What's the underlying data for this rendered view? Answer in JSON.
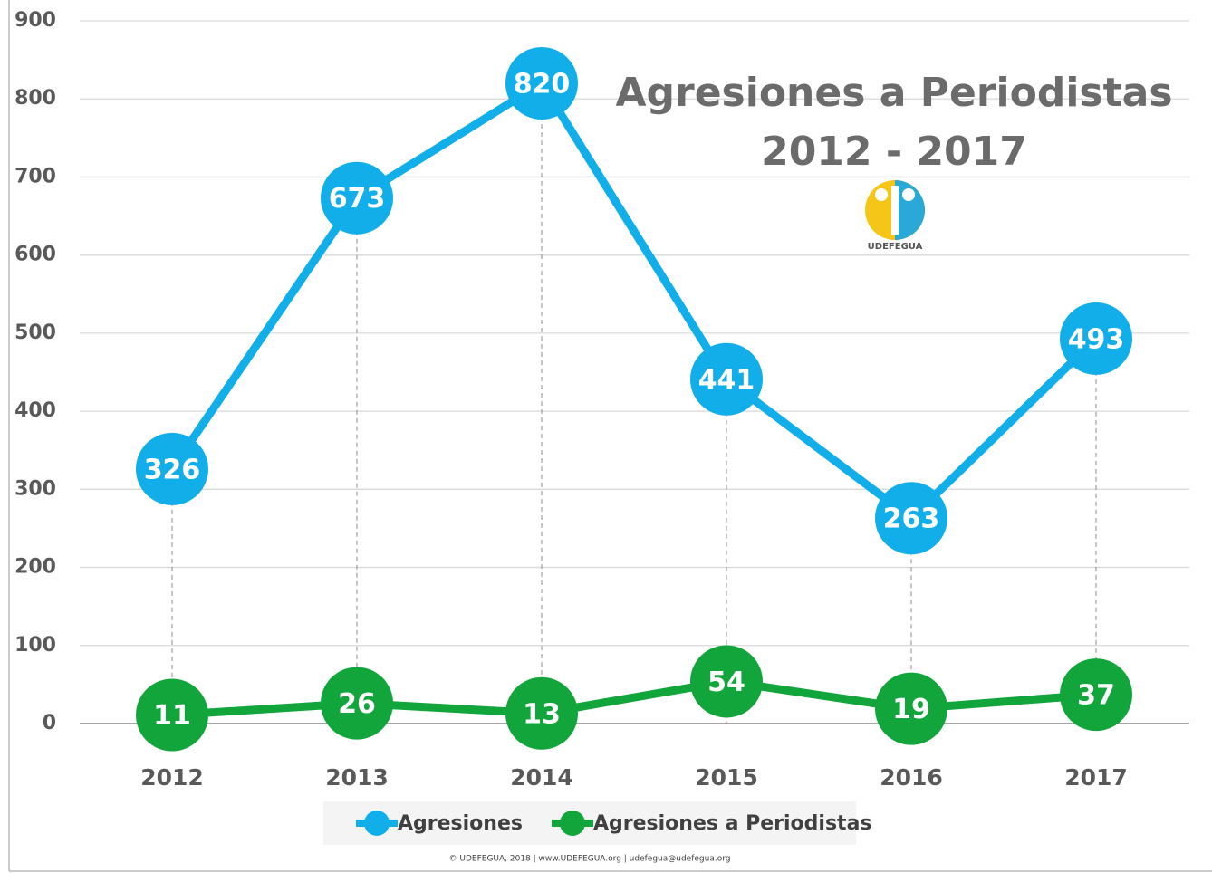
{
  "chart_data": {
    "type": "line",
    "title": [
      "Agresiones a Periodistas",
      "2012 - 2017"
    ],
    "logo_text": "UDEFEGUA",
    "footer": "© UDEFEGUA, 2018 | www.UDEFEGUA.org | udefegua@udefegua.org",
    "categories": [
      "2012",
      "2013",
      "2014",
      "2015",
      "2016",
      "2017"
    ],
    "series": [
      {
        "name": "Agresiones",
        "color": "#12aeea",
        "values": [
          326,
          673,
          820,
          441,
          263,
          493
        ]
      },
      {
        "name": "Agresiones a Periodistas",
        "color": "#12a53c",
        "values": [
          11,
          26,
          13,
          54,
          19,
          37
        ]
      }
    ],
    "ylim": [
      0,
      900
    ],
    "yticks": [
      0,
      100,
      200,
      300,
      400,
      500,
      600,
      700,
      800,
      900
    ],
    "grid": true,
    "legend": "bottom"
  }
}
